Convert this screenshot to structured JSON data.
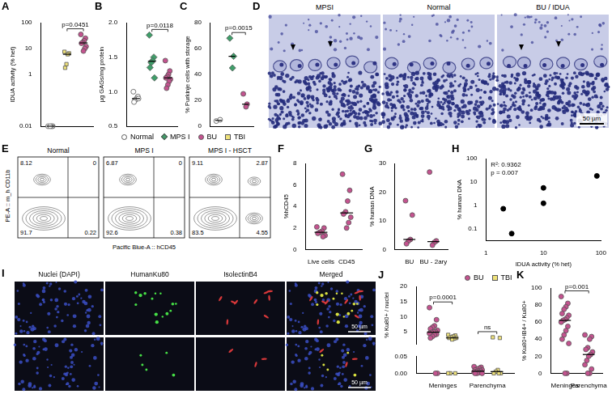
{
  "shared_legend": [
    {
      "name": "Normal",
      "color": "#ffffff",
      "marker": "circle"
    },
    {
      "name": "MPS I",
      "color": "#3f9f6a",
      "marker": "diamond"
    },
    {
      "name": "BU",
      "color": "#c4538f",
      "marker": "circle"
    },
    {
      "name": "TBI",
      "color": "#efe27a",
      "marker": "square"
    }
  ],
  "chart_data": [
    {
      "panel": "A",
      "type": "strip",
      "ylabel": "IDUA activity (% het)",
      "log": "y",
      "ylim": [
        0.01,
        100
      ],
      "yticks": [
        0.01,
        1,
        10,
        100
      ],
      "tick_labels": "y",
      "groups": [
        {
          "series": "Normal",
          "values": [
            0.01,
            0.01,
            0.01,
            0.01
          ],
          "median": 0.01
        },
        {
          "series": "TBI",
          "values": [
            7.5,
            6.5,
            6.0,
            2.5,
            1.8
          ],
          "median": 6.0
        },
        {
          "series": "BU",
          "values": [
            35,
            25,
            20,
            17,
            16,
            12,
            10,
            8
          ],
          "median": 16.5
        }
      ],
      "annotations": [
        {
          "text": "p=0.0451",
          "groups": [
            1,
            2
          ]
        }
      ]
    },
    {
      "panel": "B",
      "type": "strip",
      "ylabel": "µg GAGs/mg protein",
      "ylim": [
        0.5,
        2
      ],
      "yticks": [
        0.5,
        {
          "value": 1,
          "label": "1.0"
        },
        1.5,
        {
          "value": 2,
          "label": "2.0"
        }
      ],
      "tick_labels": "y",
      "groups": [
        {
          "series": "Normal",
          "values": [
            1.0,
            0.93,
            0.9,
            0.88,
            0.85,
            0.9
          ],
          "median": 0.9
        },
        {
          "series": "MPS I",
          "values": [
            1.82,
            1.5,
            1.45,
            1.42,
            1.35,
            1.2
          ],
          "median": 1.44
        },
        {
          "series": "BU",
          "values": [
            1.45,
            1.3,
            1.25,
            1.22,
            1.2,
            1.18,
            1.15,
            1.1,
            1.05
          ],
          "median": 1.2
        }
      ],
      "annotations": [
        {
          "text": "p=0.0118",
          "groups": [
            1,
            2
          ]
        }
      ]
    },
    {
      "panel": "C",
      "type": "strip",
      "ylabel": "% Purkinje cells with storage",
      "ylim": [
        0,
        80
      ],
      "yticks": [
        0,
        20,
        40,
        60,
        80
      ],
      "tick_labels": "y",
      "groups": [
        {
          "series": "Normal",
          "values": [
            4,
            5
          ],
          "median": 4.5
        },
        {
          "series": "MPS I",
          "values": [
            68,
            54,
            45
          ],
          "median": 54
        },
        {
          "series": "BU",
          "values": [
            25,
            17,
            15
          ],
          "median": 17
        }
      ],
      "annotations": [
        {
          "text": "p=0.0015",
          "groups": [
            1,
            2
          ]
        }
      ]
    },
    {
      "panel": "F",
      "type": "strip",
      "ylabel": "%hCD45",
      "categories": [
        "Live cells",
        "CD45"
      ],
      "ylim": [
        0,
        8
      ],
      "yticks": [
        0,
        2,
        4,
        6,
        8
      ],
      "groups": [
        {
          "label": "Live cells",
          "series": "BU",
          "values": [
            2.1,
            2.0,
            1.7,
            1.6,
            1.5,
            1.3,
            1.2
          ],
          "median": 1.6
        },
        {
          "label": "CD45",
          "series": "BU",
          "values": [
            7.0,
            5.5,
            4.5,
            3.5,
            3.3,
            3.0,
            2.5,
            2.0
          ],
          "median": 3.4
        }
      ]
    },
    {
      "panel": "G",
      "type": "strip",
      "ylabel": "% human DNA",
      "categories": [
        "BU",
        "BU - 2ary"
      ],
      "ylim": [
        0,
        30
      ],
      "yticks": [
        0,
        10,
        20,
        30
      ],
      "groups": [
        {
          "label": "BU",
          "series": "BU",
          "values": [
            17,
            12,
            3.5,
            3,
            2
          ],
          "median": 3.5
        },
        {
          "label": "BU - 2ary",
          "series": "BU",
          "values": [
            27,
            3,
            2.5,
            1.5
          ],
          "median": 2.75
        }
      ]
    },
    {
      "panel": "H",
      "type": "scatter",
      "xlabel": "IDUA activity (% het)",
      "ylabel": "% human DNA",
      "log": true,
      "x": [
        2,
        2.8,
        10,
        10,
        85
      ],
      "values": [
        0.7,
        0.06,
        1.2,
        5.5,
        18
      ],
      "color": "#000000",
      "xlim": [
        1,
        100
      ],
      "xticks": [
        1,
        10,
        100
      ],
      "ylim": [
        0.03,
        100
      ],
      "yticks": [
        0.1,
        1,
        10,
        100
      ],
      "annotations": [
        {
          "text": "R²: 0.9362"
        },
        {
          "text": "p = 0.007"
        }
      ]
    },
    {
      "panel": "J",
      "type": "strip",
      "ylabel": "% Ku80+ / nuclei",
      "categories": [
        "Meninges",
        "Parenchyma"
      ],
      "ylim": [
        0,
        0.05
      ],
      "yticks": [
        {
          "value": 0,
          "label": "0.00"
        },
        0.05
      ],
      "y2lim": [
        1,
        20
      ],
      "y2ticks": [
        5,
        10,
        15,
        20
      ],
      "legend": "top",
      "groups": [
        {
          "label": "Meninges",
          "series": "BU",
          "values": [
            13,
            9,
            7,
            6.5,
            6,
            5.5,
            5,
            5,
            4.8,
            4.5,
            4.2,
            4,
            3.5,
            3,
            0,
            0
          ],
          "median": 4.9
        },
        {
          "label": "Meninges",
          "series": "TBI",
          "values": [
            4,
            3.8,
            3.5,
            3.2,
            3,
            3,
            2.8,
            2.5,
            0,
            0,
            0
          ],
          "median": 3
        },
        {
          "label": "Parenchyma",
          "series": "BU",
          "values": [
            0.02,
            0.018,
            0.015,
            0.012,
            0.01,
            0.01,
            0.008,
            0.006,
            0.005,
            0.004,
            0.003,
            0.002,
            0,
            0,
            0
          ],
          "median": 0.006
        },
        {
          "label": "Parenchyma",
          "series": "TBI",
          "values": [
            3.2,
            3,
            0.01,
            0.005,
            0,
            0,
            0
          ],
          "median": 0.005
        }
      ],
      "annotations": [
        {
          "text": "p=0.0001",
          "groups": [
            0,
            1
          ]
        },
        {
          "text": "ns",
          "groups": [
            2,
            3
          ]
        }
      ]
    },
    {
      "panel": "K",
      "type": "strip",
      "ylabel": "% Ku80+IB4+ / Ku80+",
      "categories": [
        "Meninges",
        "Parenchyma"
      ],
      "ylim": [
        0,
        100
      ],
      "yticks": [
        0,
        20,
        40,
        60,
        80,
        100
      ],
      "groups": [
        {
          "label": "Meninges",
          "series": "BU",
          "values": [
            90,
            82,
            78,
            75,
            70,
            68,
            65,
            63,
            62,
            60,
            55,
            50,
            45,
            40,
            35,
            0,
            0
          ],
          "median": 62
        },
        {
          "label": "Parenchyma",
          "series": "BU",
          "values": [
            45,
            43,
            40,
            30,
            28,
            25,
            22,
            20,
            15,
            10,
            5,
            0,
            0
          ],
          "median": 22
        }
      ],
      "annotations": [
        {
          "text": "p=0.001",
          "groups": [
            0,
            1
          ]
        }
      ]
    }
  ],
  "micrographs_D": {
    "panel": "D",
    "columns": [
      "MPSI",
      "Normal",
      "BU / IDUA"
    ],
    "scale_bar": "50 µm"
  },
  "flow_E": {
    "panel": "E",
    "x_label": "Pacific Blue-A :: hCD45",
    "y_label": "PE-A :: m_h CD11b",
    "plots": [
      {
        "title": "Normal",
        "quadrants": {
          "upper_left": 8.12,
          "upper_right": 0,
          "lower_left": 91.7,
          "lower_right": 0.22
        }
      },
      {
        "title": "MPS I",
        "quadrants": {
          "upper_left": 6.87,
          "upper_right": 0,
          "lower_left": 92.6,
          "lower_right": 0.38
        }
      },
      {
        "title": "MPS I - HSCT",
        "quadrants": {
          "upper_left": 9.11,
          "upper_right": 2.87,
          "lower_left": 83.5,
          "lower_right": 4.55
        }
      }
    ]
  },
  "micrographs_I": {
    "panel": "I",
    "columns": [
      "Nuclei (DAPI)",
      "HumanKu80",
      "IsolectinB4",
      "Merged"
    ],
    "rows": [
      {
        "scale_bar": "50 µm"
      },
      {
        "scale_bar": "50 µm"
      }
    ]
  }
}
